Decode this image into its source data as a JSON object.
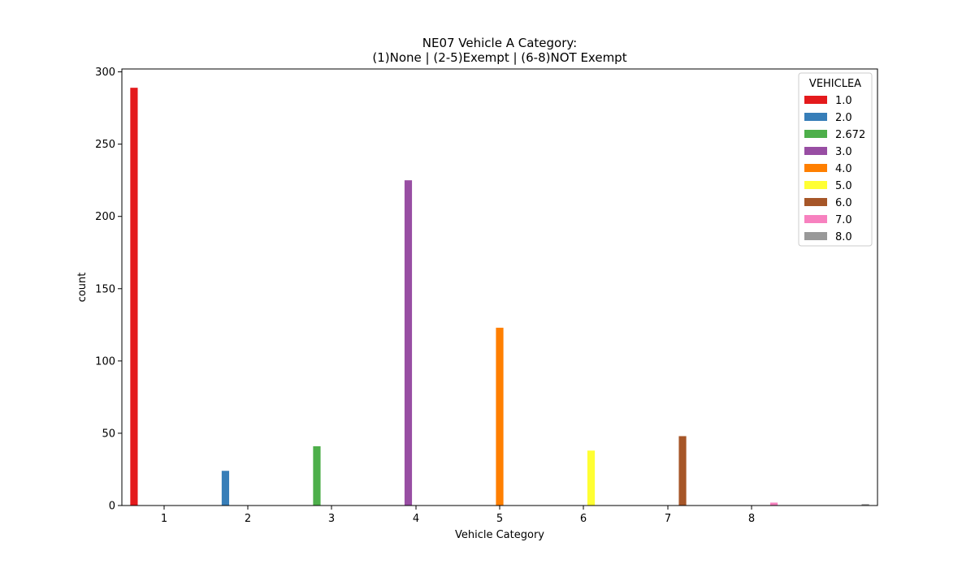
{
  "chart_data": {
    "type": "bar",
    "title_lines": [
      "NE07 Vehicle A Category:",
      "(1)None | (2-5)Exempt | (6-8)NOT Exempt"
    ],
    "xlabel": "Vehicle Category",
    "ylabel": "count",
    "ylim": [
      0,
      302
    ],
    "yticks": [
      0,
      50,
      100,
      150,
      200,
      250,
      300
    ],
    "xticks": [
      "1",
      "2",
      "3",
      "4",
      "5",
      "6",
      "7",
      "8"
    ],
    "legend_title": "VEHICLEA",
    "legend_position": "top-right",
    "grid": false,
    "series": [
      {
        "name": "1.0",
        "color": "#e41a1c",
        "value": 289
      },
      {
        "name": "2.0",
        "color": "#377eb8",
        "value": 24
      },
      {
        "name": "2.672",
        "color": "#4daf4a",
        "value": 41
      },
      {
        "name": "3.0",
        "color": "#984ea3",
        "value": 225
      },
      {
        "name": "4.0",
        "color": "#ff7f00",
        "value": 123
      },
      {
        "name": "5.0",
        "color": "#ffff33",
        "value": 38
      },
      {
        "name": "6.0",
        "color": "#a65628",
        "value": 48
      },
      {
        "name": "7.0",
        "color": "#f781bf",
        "value": 2
      },
      {
        "name": "8.0",
        "color": "#999999",
        "value": 1
      }
    ]
  }
}
